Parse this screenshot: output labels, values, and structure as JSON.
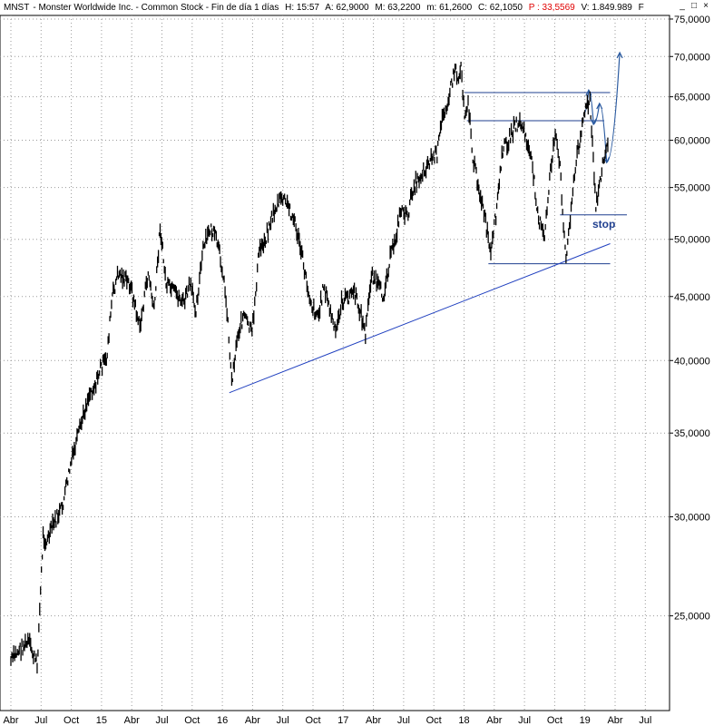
{
  "header": {
    "symbol": "MNST",
    "description": "- Monster Worldwide Inc. - Common Stock - Fin de día 1 días",
    "high": "H: 15:57",
    "open": "A: 62,9000",
    "max": "M: 63,2200",
    "min": "m: 61,2600",
    "close": "C: 62,1050",
    "p_value": "P : 33,5569",
    "volume": "V: 1.849.989",
    "trailing": "F"
  },
  "window_buttons": [
    "_",
    "□",
    "×"
  ],
  "chart_data": {
    "type": "line",
    "title": "",
    "xlabel": "",
    "ylabel": "",
    "yscale": "log",
    "ylim": [
      21000,
      75500
    ],
    "grid": true,
    "y_ticks": [
      {
        "value": 25000,
        "label": "25,0000"
      },
      {
        "value": 30000,
        "label": "30,0000"
      },
      {
        "value": 35000,
        "label": "35,0000"
      },
      {
        "value": 40000,
        "label": "40,0000"
      },
      {
        "value": 45000,
        "label": "45,0000"
      },
      {
        "value": 50000,
        "label": "50,0000"
      },
      {
        "value": 55000,
        "label": "55,0000"
      },
      {
        "value": 60000,
        "label": "60,0000"
      },
      {
        "value": 65000,
        "label": "65,0000"
      },
      {
        "value": 70000,
        "label": "70,0000"
      },
      {
        "value": 75000,
        "label": "75,0000"
      }
    ],
    "x_ticks": [
      "Abr",
      "Jul",
      "Oct",
      "15",
      "Abr",
      "Jul",
      "Oct",
      "16",
      "Abr",
      "Jul",
      "Oct",
      "17",
      "Abr",
      "Jul",
      "Oct",
      "18",
      "Abr",
      "Jul",
      "Oct",
      "19",
      "Abr",
      "Jul"
    ],
    "series": [
      {
        "x": [
          2014.25,
          2014.32,
          2014.4,
          2014.47,
          2014.52,
          2014.55,
          2014.6,
          2014.68,
          2014.75,
          2014.82,
          2014.9,
          2014.97,
          2015.0,
          2015.05,
          2015.1,
          2015.15,
          2015.2,
          2015.25,
          2015.33,
          2015.4,
          2015.45,
          2015.5,
          2015.55,
          2015.6,
          2015.65,
          2015.7,
          2015.75,
          2015.8,
          2015.86,
          2015.92,
          2015.97,
          2016.02,
          2016.06,
          2016.1,
          2016.15,
          2016.2,
          2016.27,
          2016.33,
          2016.38,
          2016.42,
          2016.47,
          2016.52,
          2016.58,
          2016.63,
          2016.68,
          2016.73,
          2016.78,
          2016.83,
          2016.87,
          2016.92,
          2016.97,
          2017.02,
          2017.08,
          2017.12,
          2017.17,
          2017.22,
          2017.27,
          2017.32,
          2017.37,
          2017.42,
          2017.47,
          2017.52,
          2017.57,
          2017.62,
          2017.67,
          2017.72,
          2017.77,
          2017.82,
          2017.87,
          2017.92,
          2017.97,
          2018.0,
          2018.02,
          2018.05,
          2018.08,
          2018.12,
          2018.17,
          2018.22,
          2018.27,
          2018.32,
          2018.37,
          2018.42,
          2018.47,
          2018.52,
          2018.57,
          2018.62,
          2018.67,
          2018.72,
          2018.77,
          2018.81,
          2018.85,
          2018.9,
          2018.95,
          2019.0,
          2019.05,
          2019.1,
          2019.15,
          2019.2,
          2019.25
        ],
        "y": [
          23000,
          23500,
          23800,
          22800,
          29000,
          28600,
          29500,
          30500,
          33000,
          35000,
          37500,
          38500,
          39500,
          40000,
          45000,
          47000,
          46500,
          46000,
          42500,
          47000,
          43800,
          51200,
          46000,
          45500,
          45000,
          44500,
          46000,
          44000,
          49000,
          51000,
          50000,
          47500,
          44000,
          38500,
          42000,
          43500,
          42000,
          49000,
          50000,
          51500,
          53000,
          54000,
          53000,
          51500,
          49000,
          46000,
          44000,
          43500,
          46000,
          44000,
          42000,
          44500,
          45000,
          45500,
          44000,
          42000,
          47000,
          46000,
          45000,
          48000,
          50000,
          53000,
          52000,
          55000,
          56000,
          57000,
          58000,
          58500,
          63000,
          65000,
          68500,
          67000,
          69000,
          63000,
          64500,
          58000,
          55000,
          52000,
          48500,
          53000,
          59000,
          60000,
          61500,
          62000,
          60000,
          57000,
          52000,
          50000,
          57000,
          60500,
          57000,
          48000,
          54000,
          59000,
          63000,
          64500,
          53000,
          57000,
          59500
        ]
      }
    ],
    "annotations": [
      {
        "type": "hline",
        "y": 65500,
        "x_from": 2018.05,
        "x_to": 2019.27
      },
      {
        "type": "hline",
        "y": 62200,
        "x_from": 2018.07,
        "x_to": 2019.22
      },
      {
        "type": "hline",
        "y": 47800,
        "x_from": 2018.25,
        "x_to": 2019.27
      },
      {
        "type": "hline",
        "y": 52300,
        "x_from": 2018.85,
        "x_to": 2019.41,
        "label": "stop"
      },
      {
        "type": "trendline",
        "points": [
          [
            2016.08,
            37700
          ],
          [
            2019.27,
            49600
          ]
        ]
      },
      {
        "type": "projection",
        "points": [
          [
            2019.05,
            63000
          ],
          [
            2019.09,
            65800
          ],
          [
            2019.13,
            61800
          ],
          [
            2019.18,
            64200
          ],
          [
            2019.24,
            57600
          ],
          [
            2019.35,
            70500
          ]
        ]
      }
    ]
  }
}
